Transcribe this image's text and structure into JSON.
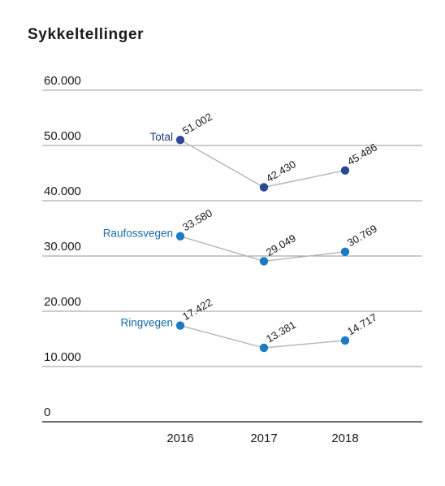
{
  "chart_data": {
    "type": "line",
    "title": "Sykkeltellinger",
    "x": [
      "2016",
      "2017",
      "2018"
    ],
    "yticks": [
      "60.000",
      "50.000",
      "40.000",
      "30.000",
      "20.000",
      "10.000",
      "0"
    ],
    "ylim": [
      0,
      60000
    ],
    "grid": true,
    "series": [
      {
        "name": "Total",
        "values": [
          51002,
          42430,
          45486
        ],
        "labels": [
          "51.002",
          "42.430",
          "45.486"
        ],
        "color": "#2b4890",
        "label_color": "#1f3a7a"
      },
      {
        "name": "Raufossvegen",
        "values": [
          33580,
          29049,
          30769
        ],
        "labels": [
          "33.580",
          "29.049",
          "30.769"
        ],
        "color": "#1a7ac2",
        "label_color": "#1a6aa8"
      },
      {
        "name": "Ringvegen",
        "values": [
          17422,
          13381,
          14717
        ],
        "labels": [
          "17.422",
          "13.381",
          "14.717"
        ],
        "color": "#1a7ac2",
        "label_color": "#1a6aa8"
      }
    ]
  },
  "colors": {
    "grid": "#9a9a9a",
    "axis": "#1a1a1a",
    "line": "#b5b5b5"
  }
}
